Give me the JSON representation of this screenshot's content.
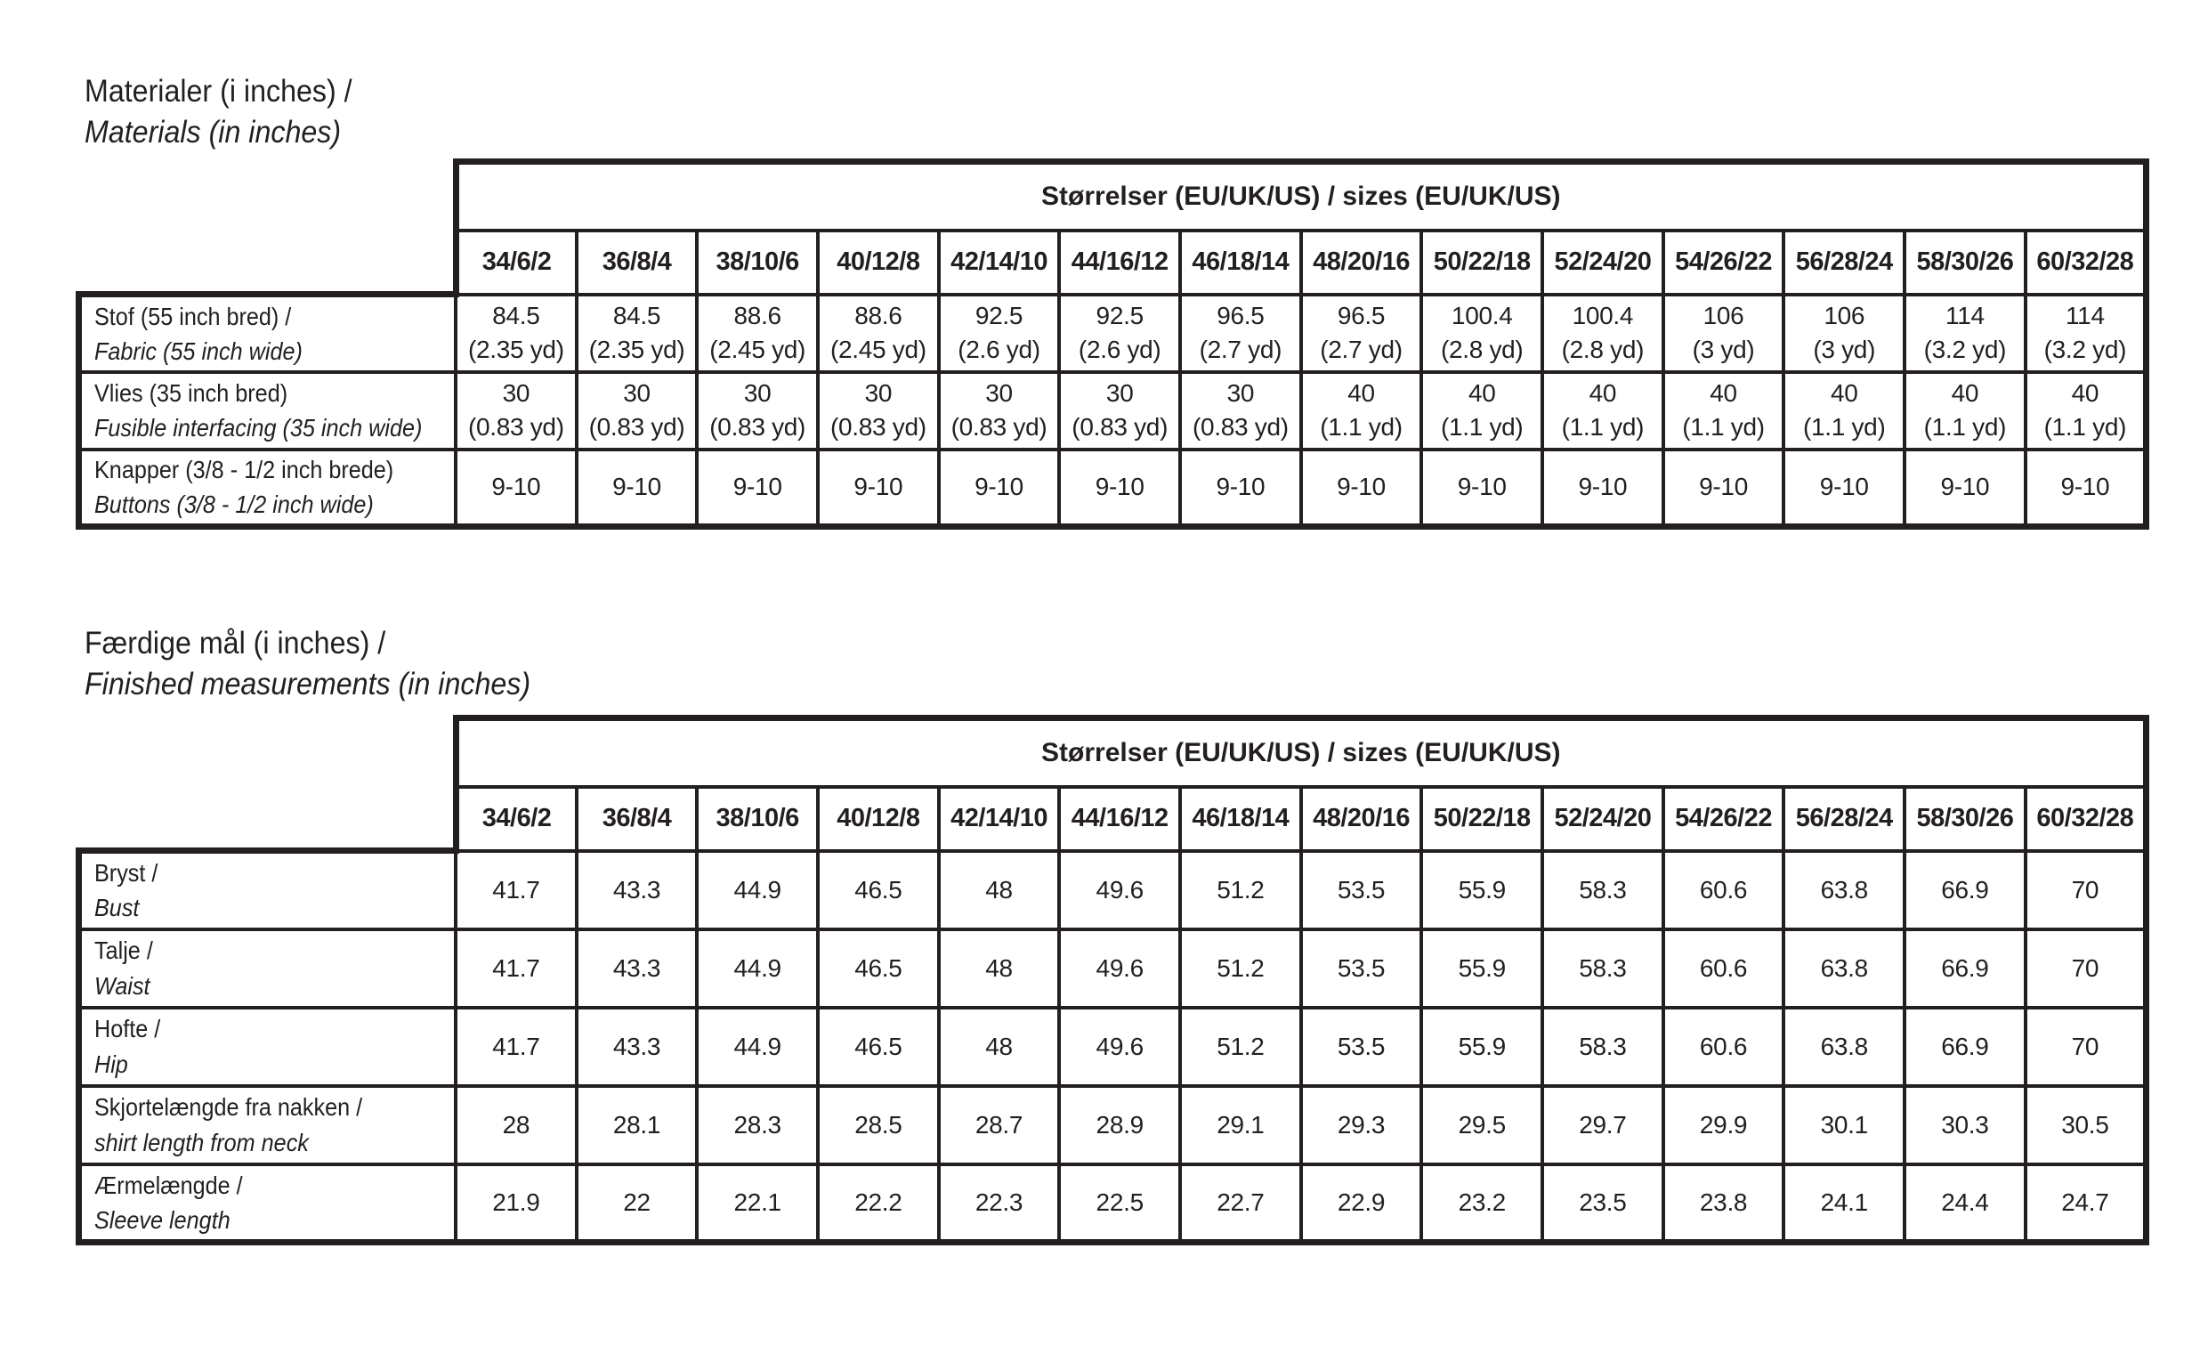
{
  "document": {
    "ink_color": "#231f20",
    "background_color": "#ffffff"
  },
  "sections": [
    {
      "id": "materials",
      "title_da": "Materialer (i inches) /",
      "title_en": "Materials (in inches)",
      "table": {
        "span_header": "Størrelser (EU/UK/US) / sizes (EU/UK/US)",
        "size_columns": [
          "34/6/2",
          "36/8/4",
          "38/10/6",
          "40/12/8",
          "42/14/10",
          "44/16/12",
          "46/18/14",
          "48/20/16",
          "50/22/18",
          "52/24/20",
          "54/26/22",
          "56/28/24",
          "58/30/26",
          "60/32/28"
        ],
        "rows": [
          {
            "label_da": "Stof (55 inch bred) /",
            "label_en": "Fabric (55 inch wide)",
            "values": [
              "84.5\n(2.35 yd)",
              "84.5\n(2.35 yd)",
              "88.6\n(2.45 yd)",
              "88.6\n(2.45 yd)",
              "92.5\n(2.6 yd)",
              "92.5\n(2.6 yd)",
              "96.5\n(2.7 yd)",
              "96.5\n(2.7 yd)",
              "100.4\n(2.8 yd)",
              "100.4\n(2.8 yd)",
              "106\n(3 yd)",
              "106\n(3 yd)",
              "114\n(3.2 yd)",
              "114\n(3.2 yd)"
            ]
          },
          {
            "label_da": "Vlies (35 inch bred)",
            "label_en": "Fusible interfacing (35 inch wide)",
            "values": [
              "30\n(0.83 yd)",
              "30\n(0.83 yd)",
              "30\n(0.83 yd)",
              "30\n(0.83 yd)",
              "30\n(0.83 yd)",
              "30\n(0.83 yd)",
              "30\n(0.83 yd)",
              "40\n(1.1 yd)",
              "40\n(1.1 yd)",
              "40\n(1.1 yd)",
              "40\n(1.1 yd)",
              "40\n(1.1 yd)",
              "40\n(1.1 yd)",
              "40\n(1.1 yd)"
            ]
          },
          {
            "label_da": "Knapper (3/8 - 1/2 inch brede)",
            "label_en": "Buttons (3/8 - 1/2 inch wide)",
            "values": [
              "9-10",
              "9-10",
              "9-10",
              "9-10",
              "9-10",
              "9-10",
              "9-10",
              "9-10",
              "9-10",
              "9-10",
              "9-10",
              "9-10",
              "9-10",
              "9-10"
            ]
          }
        ]
      }
    },
    {
      "id": "finished-measurements",
      "title_da": "Færdige mål (i inches) /",
      "title_en": "Finished measurements (in inches)",
      "table": {
        "span_header": "Størrelser (EU/UK/US) / sizes (EU/UK/US)",
        "size_columns": [
          "34/6/2",
          "36/8/4",
          "38/10/6",
          "40/12/8",
          "42/14/10",
          "44/16/12",
          "46/18/14",
          "48/20/16",
          "50/22/18",
          "52/24/20",
          "54/26/22",
          "56/28/24",
          "58/30/26",
          "60/32/28"
        ],
        "rows": [
          {
            "label_da": "Bryst /",
            "label_en": "Bust",
            "values": [
              "41.7",
              "43.3",
              "44.9",
              "46.5",
              "48",
              "49.6",
              "51.2",
              "53.5",
              "55.9",
              "58.3",
              "60.6",
              "63.8",
              "66.9",
              "70"
            ]
          },
          {
            "label_da": "Talje /",
            "label_en": "Waist",
            "values": [
              "41.7",
              "43.3",
              "44.9",
              "46.5",
              "48",
              "49.6",
              "51.2",
              "53.5",
              "55.9",
              "58.3",
              "60.6",
              "63.8",
              "66.9",
              "70"
            ]
          },
          {
            "label_da": "Hofte /",
            "label_en": "Hip",
            "values": [
              "41.7",
              "43.3",
              "44.9",
              "46.5",
              "48",
              "49.6",
              "51.2",
              "53.5",
              "55.9",
              "58.3",
              "60.6",
              "63.8",
              "66.9",
              "70"
            ]
          },
          {
            "label_da": "Skjortelængde fra nakken /",
            "label_en": "shirt length from neck",
            "values": [
              "28",
              "28.1",
              "28.3",
              "28.5",
              "28.7",
              "28.9",
              "29.1",
              "29.3",
              "29.5",
              "29.7",
              "29.9",
              "30.1",
              "30.3",
              "30.5"
            ]
          },
          {
            "label_da": "Ærmelængde /",
            "label_en": "Sleeve length",
            "values": [
              "21.9",
              "22",
              "22.1",
              "22.2",
              "22.3",
              "22.5",
              "22.7",
              "22.9",
              "23.2",
              "23.5",
              "23.8",
              "24.1",
              "24.4",
              "24.7"
            ]
          }
        ]
      }
    }
  ]
}
